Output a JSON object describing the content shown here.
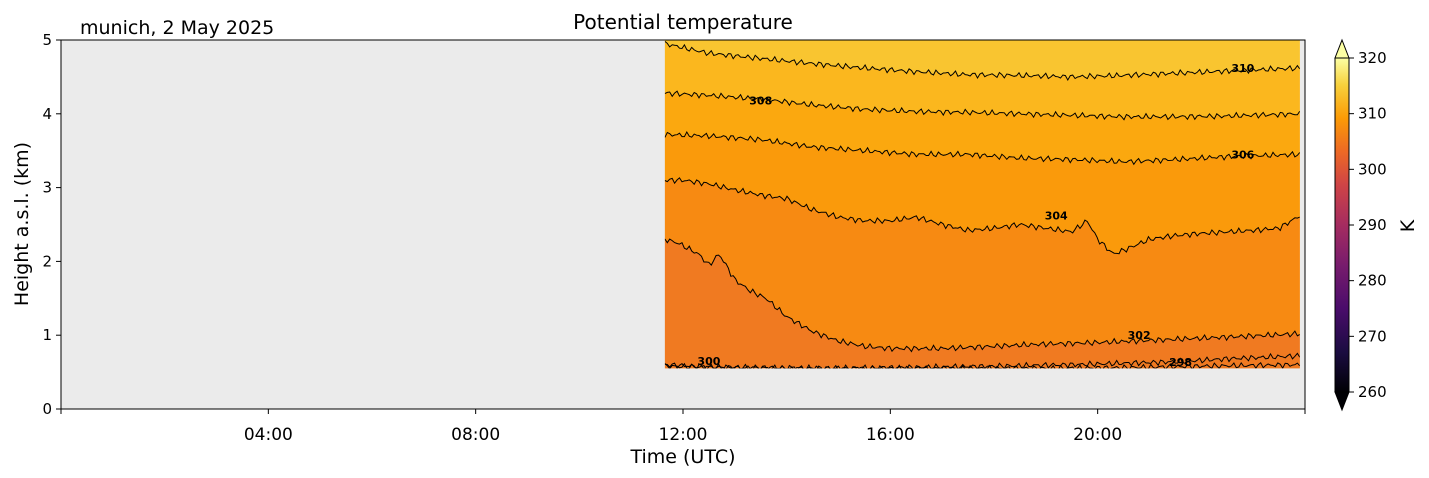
{
  "chart_data": {
    "type": "contour",
    "title": "Potential temperature",
    "station": "munich, 2 May 2025",
    "xlabel": "Time (UTC)",
    "ylabel": "Height a.s.l. (km)",
    "xlim_hours": [
      0,
      24
    ],
    "ylim_km": [
      0,
      5
    ],
    "x_ticks": [
      {
        "hour": 4,
        "label": "04:00"
      },
      {
        "hour": 8,
        "label": "08:00"
      },
      {
        "hour": 12,
        "label": "12:00"
      },
      {
        "hour": 16,
        "label": "16:00"
      },
      {
        "hour": 20,
        "label": "20:00"
      }
    ],
    "y_ticks": [
      {
        "value": 0,
        "label": "0"
      },
      {
        "value": 1,
        "label": "1"
      },
      {
        "value": 2,
        "label": "2"
      },
      {
        "value": 3,
        "label": "3"
      },
      {
        "value": 4,
        "label": "4"
      },
      {
        "value": 5,
        "label": "5"
      }
    ],
    "data_extent": {
      "start_hour": 11.65,
      "end_hour": 23.9,
      "bottom_km": 0.55,
      "top_km": 5.0
    },
    "colorbar": {
      "label": "K",
      "vmin": 260,
      "vmax": 320,
      "extend": "both",
      "ticks": [
        {
          "value": 260,
          "label": "260"
        },
        {
          "value": 270,
          "label": "270"
        },
        {
          "value": 280,
          "label": "280"
        },
        {
          "value": 290,
          "label": "290"
        },
        {
          "value": 300,
          "label": "300"
        },
        {
          "value": 310,
          "label": "310"
        },
        {
          "value": 320,
          "label": "320"
        }
      ]
    },
    "contours": [
      {
        "level": 298,
        "label": "298",
        "label_hour": 21.6,
        "label_km": 0.64,
        "points": [
          [
            11.65,
            0.58
          ],
          [
            13,
            0.56
          ],
          [
            14.5,
            0.55
          ],
          [
            16,
            0.56
          ],
          [
            18,
            0.58
          ],
          [
            19.5,
            0.6
          ],
          [
            20.5,
            0.62
          ],
          [
            21.5,
            0.64
          ],
          [
            22.5,
            0.68
          ],
          [
            23.9,
            0.72
          ]
        ]
      },
      {
        "level": 300,
        "label": "300",
        "label_hour": 12.5,
        "label_km": 0.65,
        "points": [
          [
            11.65,
            0.6
          ],
          [
            12.5,
            0.57
          ],
          [
            13.5,
            0.56
          ],
          [
            15,
            0.55
          ],
          [
            17,
            0.55
          ],
          [
            19,
            0.55
          ],
          [
            20.5,
            0.56
          ],
          [
            22,
            0.58
          ],
          [
            23.9,
            0.6
          ]
        ]
      },
      {
        "level": 302,
        "label": "302",
        "label_hour": 20.8,
        "label_km": 1.0,
        "points": [
          [
            11.65,
            2.3
          ],
          [
            11.9,
            2.25
          ],
          [
            12.3,
            2.1
          ],
          [
            12.5,
            1.95
          ],
          [
            12.7,
            2.1
          ],
          [
            13.0,
            1.75
          ],
          [
            13.3,
            1.6
          ],
          [
            13.6,
            1.5
          ],
          [
            14.0,
            1.25
          ],
          [
            14.5,
            1.05
          ],
          [
            15,
            0.92
          ],
          [
            15.5,
            0.85
          ],
          [
            16,
            0.82
          ],
          [
            17,
            0.82
          ],
          [
            18,
            0.85
          ],
          [
            19,
            0.88
          ],
          [
            20,
            0.9
          ],
          [
            21,
            0.93
          ],
          [
            22,
            0.96
          ],
          [
            23,
            0.99
          ],
          [
            23.9,
            1.02
          ]
        ]
      },
      {
        "level": 304,
        "label": "304",
        "label_hour": 19.2,
        "label_km": 2.62,
        "points": [
          [
            11.65,
            3.1
          ],
          [
            12,
            3.1
          ],
          [
            12.5,
            3.05
          ],
          [
            13,
            2.97
          ],
          [
            13.5,
            2.9
          ],
          [
            14,
            2.85
          ],
          [
            14.5,
            2.7
          ],
          [
            15,
            2.6
          ],
          [
            15.5,
            2.55
          ],
          [
            16,
            2.55
          ],
          [
            16.5,
            2.6
          ],
          [
            17,
            2.5
          ],
          [
            17.5,
            2.42
          ],
          [
            18,
            2.45
          ],
          [
            18.5,
            2.5
          ],
          [
            19,
            2.45
          ],
          [
            19.5,
            2.4
          ],
          [
            19.8,
            2.55
          ],
          [
            20,
            2.3
          ],
          [
            20.3,
            2.1
          ],
          [
            20.5,
            2.15
          ],
          [
            21,
            2.3
          ],
          [
            21.5,
            2.35
          ],
          [
            22,
            2.38
          ],
          [
            22.5,
            2.4
          ],
          [
            23,
            2.42
          ],
          [
            23.5,
            2.45
          ],
          [
            23.9,
            2.62
          ]
        ]
      },
      {
        "level": 306,
        "label": "306",
        "label_hour": 22.8,
        "label_km": 3.45,
        "points": [
          [
            11.65,
            3.72
          ],
          [
            12.5,
            3.7
          ],
          [
            13.5,
            3.65
          ],
          [
            14.5,
            3.55
          ],
          [
            15.5,
            3.5
          ],
          [
            16.5,
            3.45
          ],
          [
            17.5,
            3.45
          ],
          [
            18.5,
            3.4
          ],
          [
            19.5,
            3.38
          ],
          [
            20.5,
            3.35
          ],
          [
            21.5,
            3.38
          ],
          [
            22.5,
            3.42
          ],
          [
            23.9,
            3.45
          ]
        ]
      },
      {
        "level": 308,
        "label": "308",
        "label_hour": 13.5,
        "label_km": 4.18,
        "points": [
          [
            11.65,
            4.28
          ],
          [
            12.5,
            4.25
          ],
          [
            13.5,
            4.2
          ],
          [
            14.5,
            4.12
          ],
          [
            15.5,
            4.06
          ],
          [
            16.5,
            4.03
          ],
          [
            17.5,
            4.02
          ],
          [
            18.5,
            4.0
          ],
          [
            19.5,
            3.98
          ],
          [
            20.5,
            3.96
          ],
          [
            21.5,
            3.96
          ],
          [
            22.5,
            3.97
          ],
          [
            23.9,
            4.0
          ]
        ]
      },
      {
        "level": 310,
        "label": "310",
        "label_hour": 22.8,
        "label_km": 4.62,
        "points": [
          [
            11.65,
            4.95
          ],
          [
            12.5,
            4.82
          ],
          [
            13.5,
            4.75
          ],
          [
            14.5,
            4.68
          ],
          [
            15.5,
            4.62
          ],
          [
            16.5,
            4.57
          ],
          [
            17.5,
            4.53
          ],
          [
            18.5,
            4.52
          ],
          [
            19.5,
            4.5
          ],
          [
            20.5,
            4.52
          ],
          [
            21.5,
            4.55
          ],
          [
            22.5,
            4.58
          ],
          [
            23.9,
            4.62
          ]
        ]
      }
    ],
    "fill_bands": [
      {
        "from_km": 0.55,
        "to_km": "c302",
        "color": "#f07a21"
      },
      {
        "from_km": "c302",
        "to_km": "c304",
        "color": "#f78a12"
      },
      {
        "from_km": "c304",
        "to_km": "c306",
        "color": "#fa9a0b"
      },
      {
        "from_km": "c306",
        "to_km": "c308",
        "color": "#fba80f"
      },
      {
        "from_km": "c308",
        "to_km": "c310",
        "color": "#fbb71e"
      },
      {
        "from_km": "c310",
        "to_km": 5.0,
        "color": "#f9c530"
      }
    ]
  },
  "colors": {
    "background_plot": "#ebebeb",
    "contour_line": "#000000"
  }
}
